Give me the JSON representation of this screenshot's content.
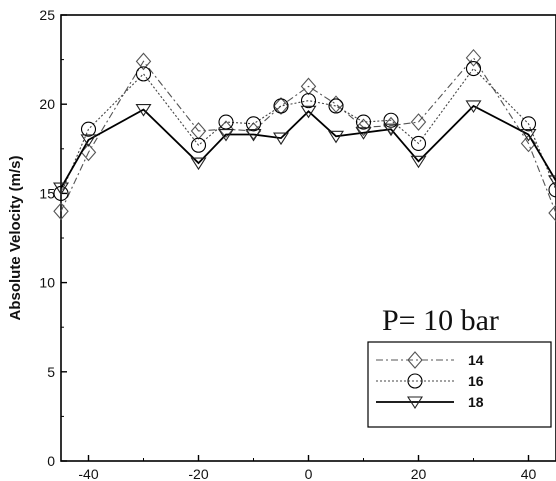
{
  "chart_data": {
    "type": "line",
    "title": "",
    "xlabel": "",
    "ylabel": "Absolute  Velocity (m/s)",
    "xlim": [
      -45,
      45
    ],
    "ylim": [
      0,
      25
    ],
    "xticks": [
      -40,
      -20,
      0,
      20,
      40
    ],
    "yticks": [
      0,
      5,
      10,
      15,
      20,
      25
    ],
    "annotation": "P= 10 bar",
    "legend_position": "bottom-right",
    "series": [
      {
        "name": "14",
        "marker": "diamond",
        "line": "dash-dot",
        "x": [
          -45,
          -40,
          -30,
          -20,
          -15,
          -10,
          -5,
          0,
          5,
          10,
          15,
          20,
          30,
          40,
          45
        ],
        "y": [
          14.0,
          17.3,
          22.4,
          18.5,
          18.6,
          18.5,
          19.9,
          21.0,
          20.0,
          18.7,
          18.8,
          19.0,
          22.6,
          17.8,
          13.9
        ]
      },
      {
        "name": "16",
        "marker": "circle",
        "line": "dotted",
        "x": [
          -45,
          -40,
          -30,
          -20,
          -15,
          -10,
          -5,
          0,
          5,
          10,
          15,
          20,
          30,
          40,
          45
        ],
        "y": [
          15.0,
          18.6,
          21.7,
          17.7,
          19.0,
          18.9,
          19.9,
          20.2,
          19.9,
          19.0,
          19.1,
          17.8,
          22.0,
          18.9,
          15.2
        ]
      },
      {
        "name": "18",
        "marker": "triangle-down",
        "line": "solid",
        "x": [
          -45,
          -40,
          -30,
          -20,
          -15,
          -10,
          -5,
          0,
          5,
          10,
          15,
          20,
          30,
          40,
          45
        ],
        "y": [
          15.3,
          18.0,
          19.7,
          16.7,
          18.3,
          18.3,
          18.1,
          19.6,
          18.2,
          18.4,
          18.6,
          16.8,
          19.9,
          18.3,
          15.7
        ]
      }
    ]
  }
}
